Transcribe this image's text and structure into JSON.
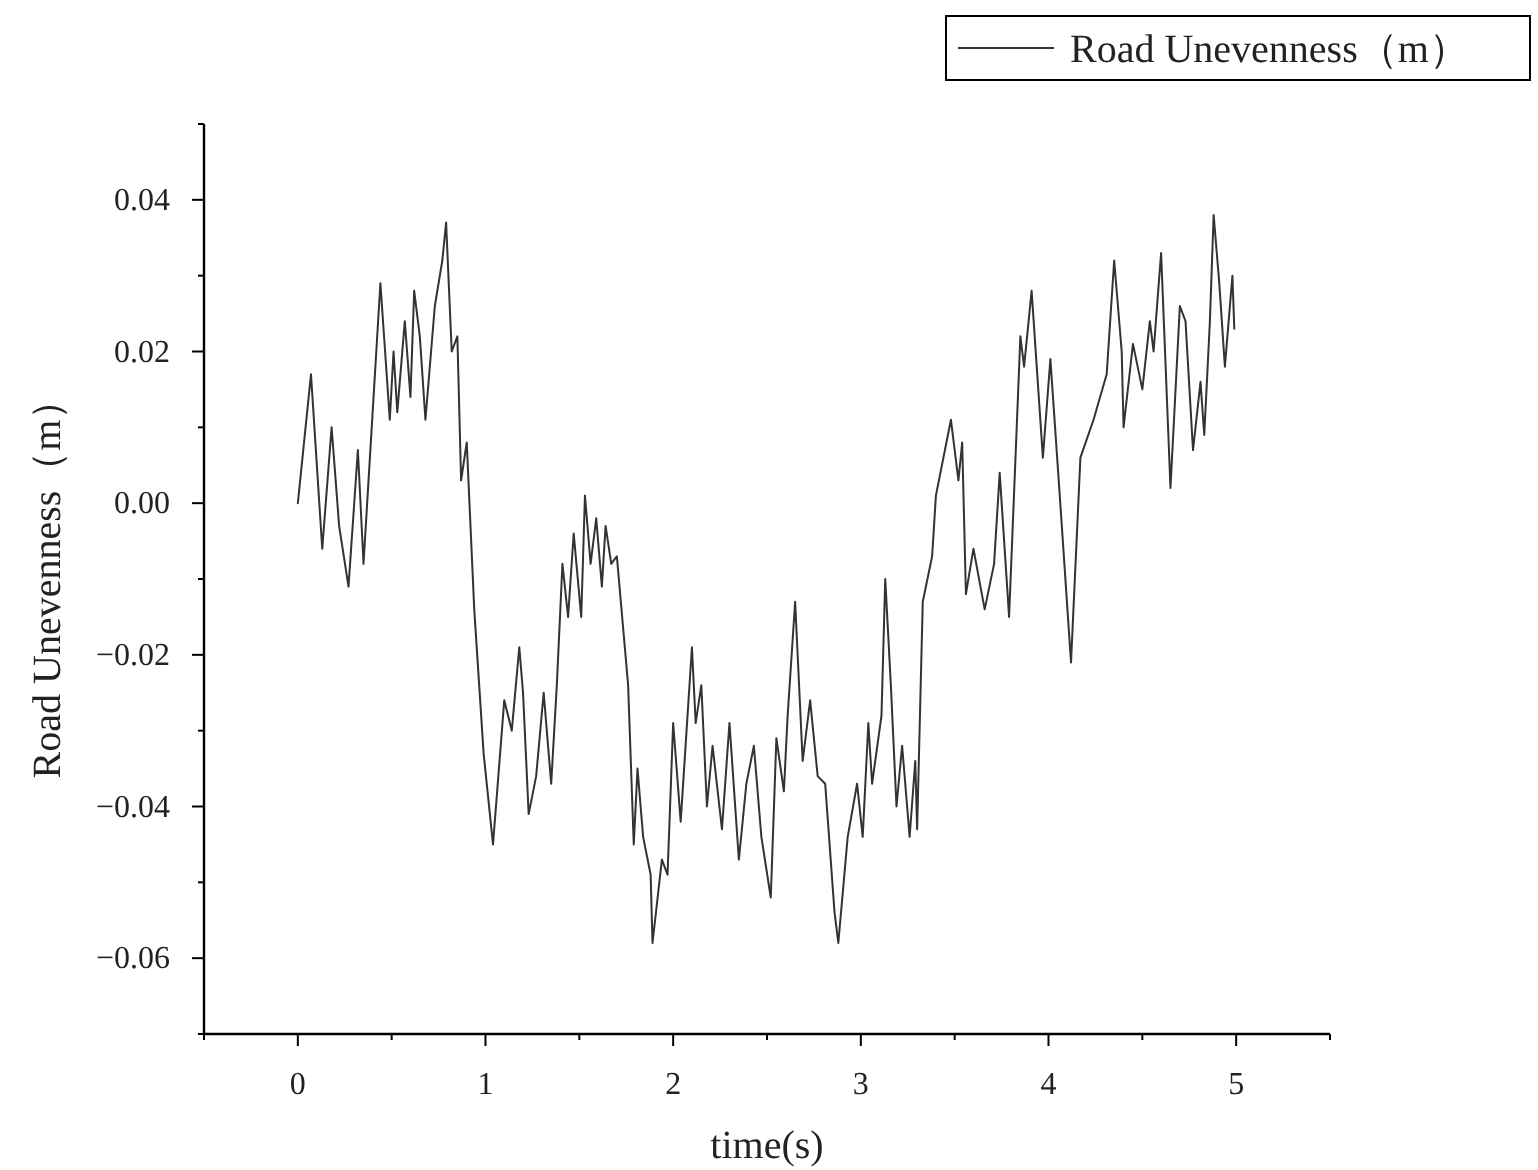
{
  "chart_data": {
    "type": "line",
    "xlabel": "time(s)",
    "ylabel": "Road Unevenness（m）",
    "xlim": [
      -0.5,
      5.5
    ],
    "ylim": [
      -0.07,
      0.05
    ],
    "xticks": [
      0,
      1,
      2,
      3,
      4,
      5,
      {
        "value": -0.5,
        "label": null
      },
      {
        "value": 0.5,
        "label": null
      },
      {
        "value": 1.5,
        "label": null
      },
      {
        "value": 2.5,
        "label": null
      },
      {
        "value": 3.5,
        "label": null
      },
      {
        "value": 4.5,
        "label": null
      },
      {
        "value": 5.5,
        "label": null
      }
    ],
    "yticks": [
      {
        "value": -0.06,
        "label": "−0.06"
      },
      {
        "value": -0.04,
        "label": "−0.04"
      },
      {
        "value": -0.02,
        "label": "−0.02"
      },
      {
        "value": 0,
        "label": "0.00"
      },
      {
        "value": 0.02,
        "label": "0.02"
      },
      {
        "value": 0.04,
        "label": "0.04"
      },
      {
        "value": -0.07,
        "label": null
      },
      {
        "value": -0.05,
        "label": null
      },
      {
        "value": -0.03,
        "label": null
      },
      {
        "value": -0.01,
        "label": null
      },
      {
        "value": 0.01,
        "label": null
      },
      {
        "value": 0.03,
        "label": null
      },
      {
        "value": 0.05,
        "label": null
      }
    ],
    "legend": "top right",
    "grid": false,
    "marker": "none",
    "line_style": "solid",
    "series": [
      {
        "name": "Road Unevenness（m）",
        "color": "#333333",
        "x": [
          0,
          0.07,
          0.13,
          0.18,
          0.22,
          0.27,
          0.32,
          0.35,
          0.44,
          0.49,
          0.51,
          0.53,
          0.57,
          0.6,
          0.62,
          0.65,
          0.68,
          0.73,
          0.77,
          0.79,
          0.82,
          0.85,
          0.87,
          0.9,
          0.94,
          0.99,
          1.04,
          1.1,
          1.14,
          1.18,
          1.2,
          1.23,
          1.27,
          1.31,
          1.35,
          1.38,
          1.41,
          1.44,
          1.47,
          1.51,
          1.53,
          1.56,
          1.59,
          1.62,
          1.64,
          1.67,
          1.7,
          1.76,
          1.79,
          1.81,
          1.84,
          1.88,
          1.89,
          1.94,
          1.97,
          2.0,
          2.04,
          2.1,
          2.12,
          2.15,
          2.18,
          2.21,
          2.26,
          2.3,
          2.35,
          2.39,
          2.43,
          2.47,
          2.52,
          2.55,
          2.59,
          2.61,
          2.65,
          2.69,
          2.73,
          2.77,
          2.81,
          2.86,
          2.88,
          2.93,
          2.98,
          3.01,
          3.04,
          3.06,
          3.11,
          3.13,
          3.16,
          3.19,
          3.22,
          3.26,
          3.29,
          3.3,
          3.33,
          3.38,
          3.4,
          3.48,
          3.52,
          3.54,
          3.56,
          3.6,
          3.66,
          3.71,
          3.74,
          3.79,
          3.85,
          3.87,
          3.91,
          3.97,
          4.01,
          4.06,
          4.12,
          4.17,
          4.24,
          4.31,
          4.35,
          4.39,
          4.4,
          4.45,
          4.5,
          4.54,
          4.56,
          4.6,
          4.65,
          4.7,
          4.73,
          4.77,
          4.81,
          4.83,
          4.86,
          4.88,
          4.91,
          4.94,
          4.98,
          4.99
        ],
        "values": [
          0,
          0.017,
          -0.006,
          0.01,
          -0.003,
          -0.011,
          0.007,
          -0.008,
          0.029,
          0.011,
          0.02,
          0.012,
          0.024,
          0.014,
          0.028,
          0.022,
          0.011,
          0.026,
          0.032,
          0.037,
          0.02,
          0.022,
          0.003,
          0.008,
          -0.014,
          -0.033,
          -0.045,
          -0.026,
          -0.03,
          -0.019,
          -0.025,
          -0.041,
          -0.036,
          -0.025,
          -0.037,
          -0.024,
          -0.008,
          -0.015,
          -0.004,
          -0.015,
          0.001,
          -0.008,
          -0.002,
          -0.011,
          -0.003,
          -0.008,
          -0.007,
          -0.024,
          -0.045,
          -0.035,
          -0.044,
          -0.049,
          -0.058,
          -0.047,
          -0.049,
          -0.029,
          -0.042,
          -0.019,
          -0.029,
          -0.024,
          -0.04,
          -0.032,
          -0.043,
          -0.029,
          -0.047,
          -0.037,
          -0.032,
          -0.044,
          -0.052,
          -0.031,
          -0.038,
          -0.028,
          -0.013,
          -0.034,
          -0.026,
          -0.036,
          -0.037,
          -0.054,
          -0.058,
          -0.044,
          -0.037,
          -0.044,
          -0.029,
          -0.037,
          -0.028,
          -0.01,
          -0.024,
          -0.04,
          -0.032,
          -0.044,
          -0.034,
          -0.043,
          -0.013,
          -0.007,
          0.001,
          0.011,
          0.003,
          0.008,
          -0.012,
          -0.006,
          -0.014,
          -0.008,
          0.004,
          -0.015,
          0.022,
          0.018,
          0.028,
          0.006,
          0.019,
          0.001,
          -0.021,
          0.006,
          0.011,
          0.017,
          0.032,
          0.02,
          0.01,
          0.021,
          0.015,
          0.024,
          0.02,
          0.033,
          0.002,
          0.026,
          0.024,
          0.007,
          0.016,
          0.009,
          0.024,
          0.038,
          0.029,
          0.018,
          0.03,
          0.023
        ]
      }
    ]
  }
}
